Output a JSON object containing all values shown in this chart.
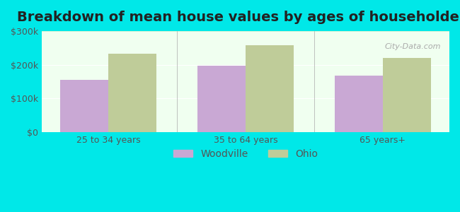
{
  "title": "Breakdown of mean house values by ages of householders",
  "categories": [
    "25 to 34 years",
    "35 to 64 years",
    "65 years+"
  ],
  "woodville_values": [
    155000,
    197000,
    168000
  ],
  "ohio_values": [
    232000,
    258000,
    220000
  ],
  "woodville_color": "#c9a8d4",
  "ohio_color": "#bfcc99",
  "background_color": "#00e8e8",
  "plot_bg_gradient_top": "#e8f5e0",
  "plot_bg_gradient_bottom": "#f0fff0",
  "ylim": [
    0,
    300000
  ],
  "yticks": [
    0,
    100000,
    200000,
    300000
  ],
  "ytick_labels": [
    "$0",
    "$100k",
    "$200k",
    "$300k"
  ],
  "legend_labels": [
    "Woodville",
    "Ohio"
  ],
  "bar_width": 0.35,
  "title_fontsize": 14,
  "tick_fontsize": 9,
  "legend_fontsize": 10
}
